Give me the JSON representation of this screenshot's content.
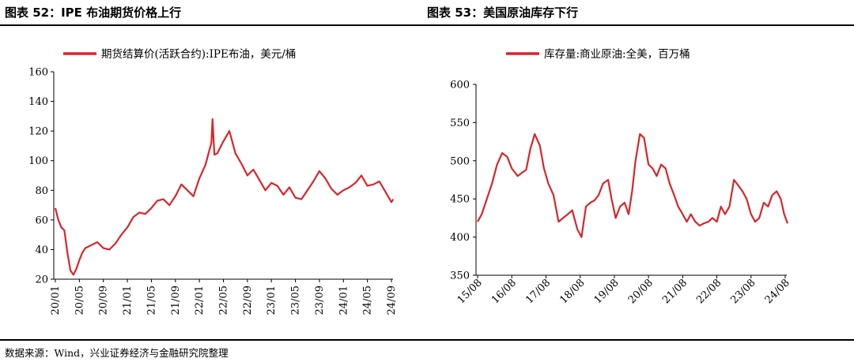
{
  "figure_left_title": "图表 52：IPE 布油期货价格上行",
  "figure_right_title": "图表 53：美国原油库存下行",
  "source_note": "数据来源：Wind，兴业证券经济与金融研究院整理",
  "accent_color": "#d9262a",
  "chart_data": [
    {
      "type": "line",
      "title": "",
      "legend_position": "top",
      "grid": false,
      "ylim": [
        20,
        160
      ],
      "yticks": [
        "20",
        "40",
        "60",
        "80",
        "100",
        "120",
        "140",
        "160"
      ],
      "xticks": [
        "20/01",
        "20/05",
        "20/09",
        "21/01",
        "21/05",
        "21/09",
        "22/01",
        "22/05",
        "22/09",
        "23/01",
        "23/05",
        "23/09",
        "24/01",
        "24/05",
        "24/09"
      ],
      "series": [
        {
          "name": "期货结算价(活跃合约):IPE布油，美元/桶",
          "color": "#d9262a",
          "points": [
            [
              "20/01",
              68
            ],
            [
              "20/01.5",
              60
            ],
            [
              "20/02",
              55
            ],
            [
              "20/02.5",
              53
            ],
            [
              "20/03",
              38
            ],
            [
              "20/03.5",
              26
            ],
            [
              "20/04",
              23
            ],
            [
              "20/04.5",
              27
            ],
            [
              "20/05",
              33
            ],
            [
              "20/05.5",
              38
            ],
            [
              "20/06",
              41
            ],
            [
              "20/07",
              43
            ],
            [
              "20/08",
              45
            ],
            [
              "20/09",
              41
            ],
            [
              "20/10",
              40
            ],
            [
              "20/11",
              44
            ],
            [
              "20/12",
              50
            ],
            [
              "21/01",
              55
            ],
            [
              "21/02",
              62
            ],
            [
              "21/03",
              65
            ],
            [
              "21/04",
              64
            ],
            [
              "21/05",
              68
            ],
            [
              "21/06",
              73
            ],
            [
              "21/07",
              74
            ],
            [
              "21/08",
              70
            ],
            [
              "21/09",
              76
            ],
            [
              "21/10",
              84
            ],
            [
              "21/11",
              80
            ],
            [
              "21/12",
              76
            ],
            [
              "22/01",
              88
            ],
            [
              "22/02",
              97
            ],
            [
              "22/03",
              112
            ],
            [
              "22/03.2",
              128
            ],
            [
              "22/03.5",
              104
            ],
            [
              "22/04",
              105
            ],
            [
              "22/05",
              113
            ],
            [
              "22/06",
              120
            ],
            [
              "22/07",
              105
            ],
            [
              "22/08",
              98
            ],
            [
              "22/09",
              90
            ],
            [
              "22/10",
              94
            ],
            [
              "22/11",
              87
            ],
            [
              "22/12",
              80
            ],
            [
              "23/01",
              85
            ],
            [
              "23/02",
              83
            ],
            [
              "23/03",
              77
            ],
            [
              "23/04",
              82
            ],
            [
              "23/05",
              75
            ],
            [
              "23/06",
              74
            ],
            [
              "23/07",
              80
            ],
            [
              "23/08",
              86
            ],
            [
              "23/09",
              93
            ],
            [
              "23/10",
              88
            ],
            [
              "23/11",
              81
            ],
            [
              "23/12",
              77
            ],
            [
              "24/01",
              80
            ],
            [
              "24/02",
              82
            ],
            [
              "24/03",
              85
            ],
            [
              "24/04",
              90
            ],
            [
              "24/05",
              83
            ],
            [
              "24/06",
              84
            ],
            [
              "24/07",
              86
            ],
            [
              "24/08",
              79
            ],
            [
              "24/09",
              72
            ],
            [
              "24/09.3",
              74
            ]
          ]
        }
      ]
    },
    {
      "type": "line",
      "title": "",
      "legend_position": "top",
      "grid": false,
      "ylim": [
        350,
        600
      ],
      "yticks": [
        "350",
        "400",
        "450",
        "500",
        "550",
        "600"
      ],
      "xticks": [
        "15/08",
        "16/08",
        "17/08",
        "18/08",
        "19/08",
        "20/08",
        "21/08",
        "22/08",
        "23/08",
        "24/08"
      ],
      "series": [
        {
          "name": "库存量:商业原油:全美，百万桶",
          "color": "#d9262a",
          "points": [
            [
              2015.58,
              420
            ],
            [
              2015.7,
              430
            ],
            [
              2015.85,
              450
            ],
            [
              2016.0,
              470
            ],
            [
              2016.15,
              495
            ],
            [
              2016.3,
              510
            ],
            [
              2016.45,
              505
            ],
            [
              2016.58,
              490
            ],
            [
              2016.75,
              480
            ],
            [
              2016.9,
              485
            ],
            [
              2017.0,
              488
            ],
            [
              2017.12,
              515
            ],
            [
              2017.25,
              535
            ],
            [
              2017.4,
              520
            ],
            [
              2017.52,
              490
            ],
            [
              2017.65,
              470
            ],
            [
              2017.8,
              455
            ],
            [
              2017.95,
              420
            ],
            [
              2018.08,
              425
            ],
            [
              2018.22,
              430
            ],
            [
              2018.35,
              435
            ],
            [
              2018.5,
              410
            ],
            [
              2018.62,
              400
            ],
            [
              2018.75,
              440
            ],
            [
              2018.88,
              445
            ],
            [
              2019.0,
              448
            ],
            [
              2019.12,
              455
            ],
            [
              2019.25,
              470
            ],
            [
              2019.4,
              475
            ],
            [
              2019.5,
              450
            ],
            [
              2019.62,
              425
            ],
            [
              2019.75,
              440
            ],
            [
              2019.88,
              445
            ],
            [
              2020.0,
              430
            ],
            [
              2020.1,
              460
            ],
            [
              2020.2,
              500
            ],
            [
              2020.33,
              535
            ],
            [
              2020.45,
              530
            ],
            [
              2020.58,
              495
            ],
            [
              2020.7,
              490
            ],
            [
              2020.82,
              480
            ],
            [
              2020.95,
              495
            ],
            [
              2021.08,
              490
            ],
            [
              2021.2,
              470
            ],
            [
              2021.33,
              455
            ],
            [
              2021.45,
              440
            ],
            [
              2021.58,
              430
            ],
            [
              2021.7,
              420
            ],
            [
              2021.82,
              430
            ],
            [
              2021.95,
              420
            ],
            [
              2022.08,
              415
            ],
            [
              2022.2,
              418
            ],
            [
              2022.33,
              420
            ],
            [
              2022.45,
              425
            ],
            [
              2022.58,
              420
            ],
            [
              2022.7,
              440
            ],
            [
              2022.82,
              430
            ],
            [
              2022.95,
              440
            ],
            [
              2023.08,
              475
            ],
            [
              2023.2,
              468
            ],
            [
              2023.33,
              460
            ],
            [
              2023.45,
              450
            ],
            [
              2023.58,
              430
            ],
            [
              2023.7,
              420
            ],
            [
              2023.82,
              425
            ],
            [
              2023.95,
              445
            ],
            [
              2024.08,
              440
            ],
            [
              2024.2,
              455
            ],
            [
              2024.33,
              460
            ],
            [
              2024.45,
              450
            ],
            [
              2024.55,
              430
            ],
            [
              2024.65,
              418
            ]
          ]
        }
      ]
    }
  ]
}
